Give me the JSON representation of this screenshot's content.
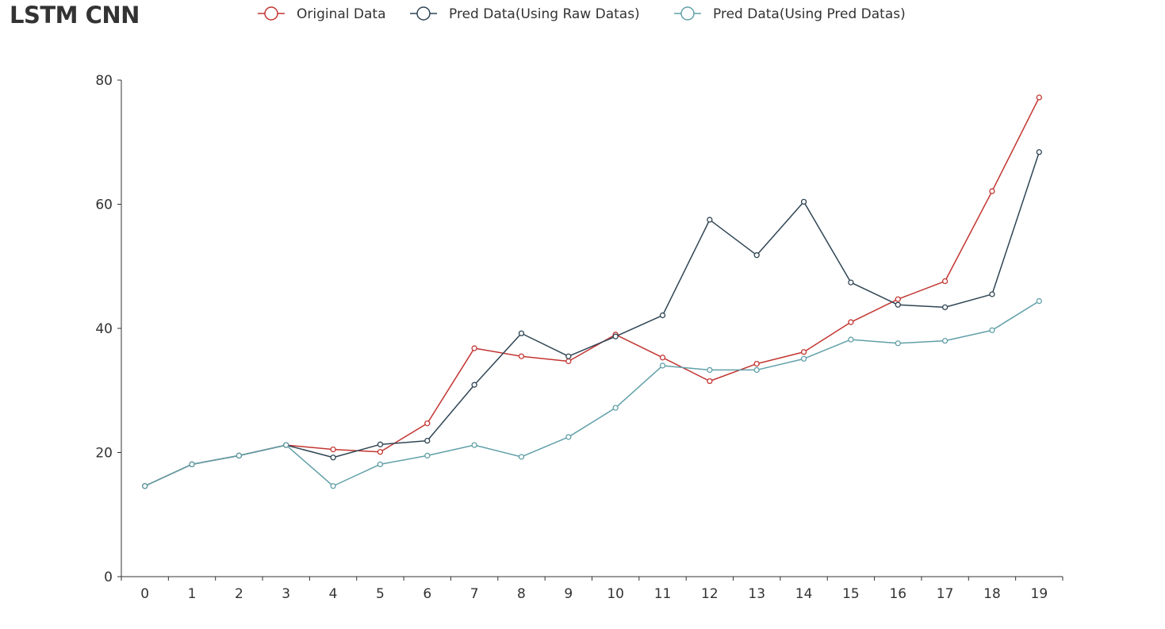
{
  "chart_data": {
    "type": "line",
    "title": "LSTM CNN",
    "xlabel": "",
    "ylabel": "",
    "categories": [
      "0",
      "1",
      "2",
      "3",
      "4",
      "5",
      "6",
      "7",
      "8",
      "9",
      "10",
      "11",
      "12",
      "13",
      "14",
      "15",
      "16",
      "17",
      "18",
      "19"
    ],
    "ylim": [
      0,
      80
    ],
    "yticks": [
      0,
      20,
      40,
      60,
      80
    ],
    "grid": false,
    "legend_position": "top",
    "series": [
      {
        "name": "Original Data",
        "color": "#c23531",
        "values": [
          14.6,
          18.1,
          19.5,
          21.2,
          20.5,
          20.1,
          24.7,
          36.8,
          35.5,
          34.7,
          39.0,
          35.3,
          31.5,
          34.3,
          36.2,
          41.0,
          44.7,
          47.6,
          62.1,
          77.2
        ]
      },
      {
        "name": "Pred Data(Using Raw Datas)",
        "color": "#2f4554",
        "values": [
          14.6,
          18.1,
          19.5,
          21.2,
          19.2,
          21.3,
          21.9,
          30.9,
          39.2,
          35.5,
          38.7,
          42.1,
          57.5,
          51.8,
          60.4,
          47.4,
          43.8,
          43.4,
          45.5,
          68.4
        ]
      },
      {
        "name": "Pred Data(Using Pred Datas)",
        "color": "#61a0a8",
        "values": [
          14.6,
          18.1,
          19.5,
          21.2,
          14.6,
          18.1,
          19.5,
          21.2,
          19.3,
          22.5,
          27.2,
          34.0,
          33.3,
          33.3,
          35.1,
          38.2,
          37.6,
          38.0,
          39.7,
          44.4
        ]
      }
    ]
  }
}
